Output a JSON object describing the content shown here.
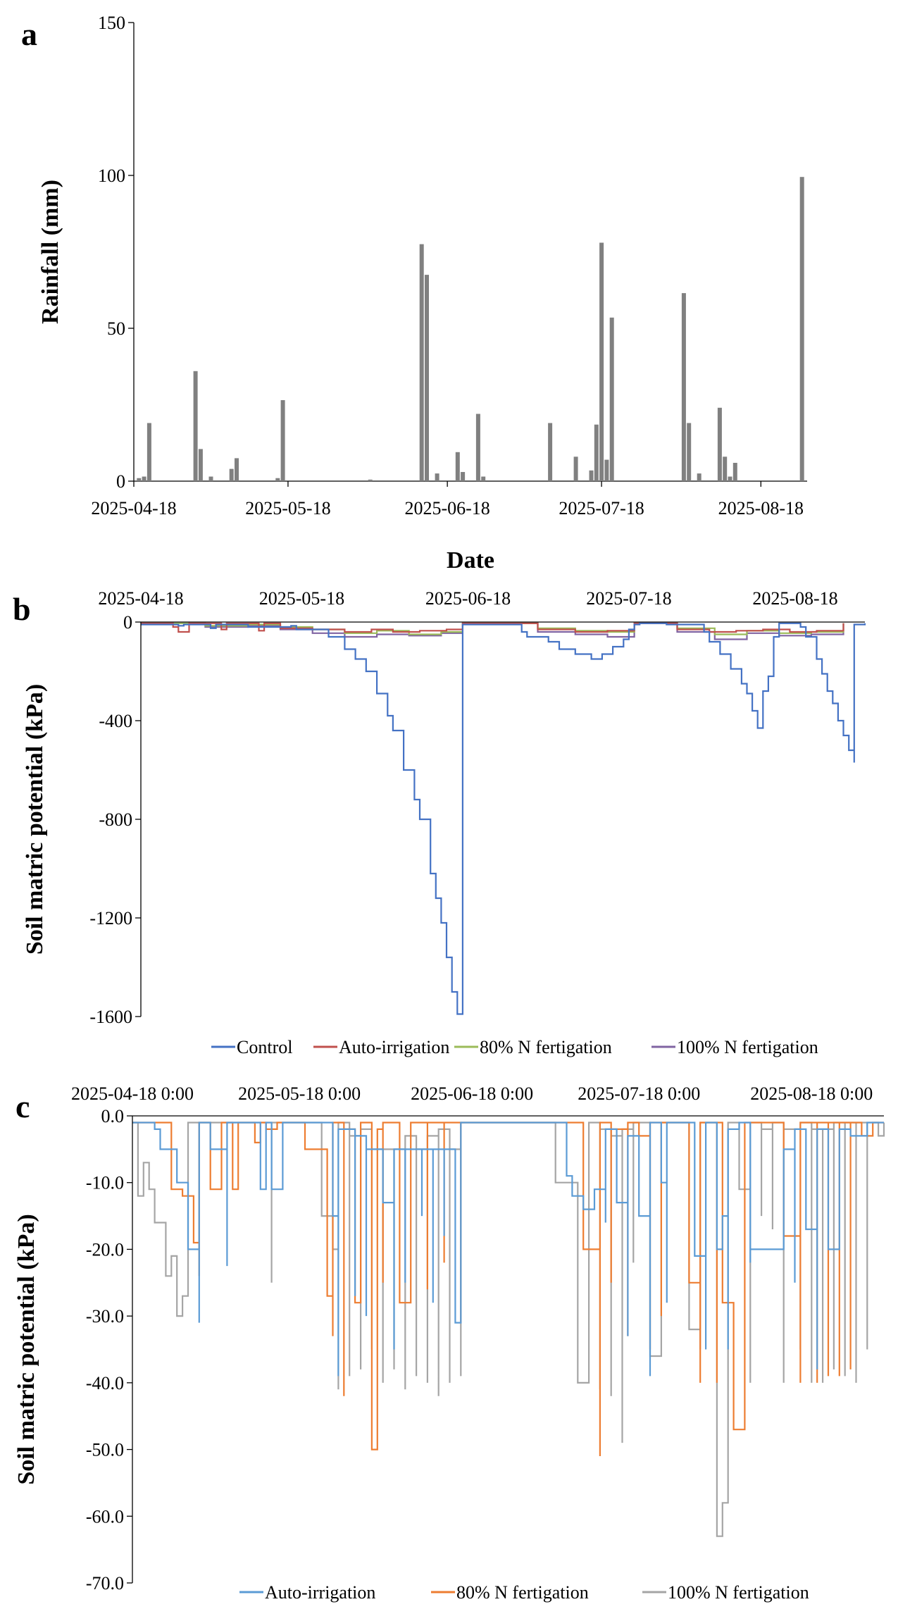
{
  "chart_data": [
    {
      "panel": "a",
      "type": "bar",
      "xlabel": "Date",
      "ylabel": "Rainfall (mm)",
      "ylim": [
        0,
        150
      ],
      "yticks": [
        "0",
        "50",
        "100",
        "150"
      ],
      "xticks": [
        "2025-04-18",
        "2025-05-18",
        "2025-06-18",
        "2025-07-18",
        "2025-08-18"
      ],
      "x_range": [
        "2025-04-18",
        "2025-08-27"
      ],
      "color": "#808080",
      "dates": [
        "2025-04-19",
        "2025-04-20",
        "2025-04-21",
        "2025-04-30",
        "2025-05-01",
        "2025-05-03",
        "2025-05-07",
        "2025-05-08",
        "2025-05-16",
        "2025-05-17",
        "2025-06-03",
        "2025-06-13",
        "2025-06-14",
        "2025-06-16",
        "2025-06-20",
        "2025-06-21",
        "2025-06-24",
        "2025-06-25",
        "2025-07-08",
        "2025-07-13",
        "2025-07-16",
        "2025-07-17",
        "2025-07-18",
        "2025-07-19",
        "2025-07-20",
        "2025-08-03",
        "2025-08-04",
        "2025-08-06",
        "2025-08-10",
        "2025-08-11",
        "2025-08-12",
        "2025-08-13",
        "2025-08-26"
      ],
      "values": [
        1,
        1.5,
        19,
        36,
        10.5,
        1.5,
        4,
        7.5,
        1,
        26.5,
        0.5,
        77.5,
        67.5,
        2.5,
        9.5,
        3,
        22,
        1.5,
        19,
        8,
        3.5,
        18.5,
        78,
        7,
        53.5,
        61.5,
        19,
        2.5,
        24,
        8,
        1.5,
        6,
        99.5
      ]
    },
    {
      "panel": "b",
      "type": "line",
      "xlabel": "",
      "ylabel": "Soil matric potential (kPa)",
      "ylim": [
        -1600,
        0
      ],
      "yticks": [
        "0",
        "-400",
        "-800",
        "-1200",
        "-1600"
      ],
      "xticks": [
        "2025-04-18",
        "2025-05-18",
        "2025-06-18",
        "2025-07-18",
        "2025-08-18"
      ],
      "x_range": [
        "2025-04-18",
        "2025-08-31"
      ],
      "series": [
        {
          "name": "Control",
          "color": "#4472C4",
          "dates": [
            "2025-04-18",
            "2025-04-25",
            "2025-04-26",
            "2025-05-01",
            "2025-05-02",
            "2025-05-08",
            "2025-05-16",
            "2025-05-17",
            "2025-05-23",
            "2025-05-26",
            "2025-05-28",
            "2025-05-30",
            "2025-06-01",
            "2025-06-03",
            "2025-06-04",
            "2025-06-06",
            "2025-06-08",
            "2025-06-09",
            "2025-06-11",
            "2025-06-12",
            "2025-06-13",
            "2025-06-14",
            "2025-06-15",
            "2025-06-16",
            "2025-06-17",
            "2025-06-17",
            "2025-06-28",
            "2025-06-29",
            "2025-07-03",
            "2025-07-05",
            "2025-07-08",
            "2025-07-11",
            "2025-07-13",
            "2025-07-15",
            "2025-07-17",
            "2025-07-18",
            "2025-07-19",
            "2025-07-20",
            "2025-07-21",
            "2025-07-25",
            "2025-08-01",
            "2025-08-02",
            "2025-08-04",
            "2025-08-06",
            "2025-08-08",
            "2025-08-09",
            "2025-08-10",
            "2025-08-11",
            "2025-08-12",
            "2025-08-13",
            "2025-08-14",
            "2025-08-15",
            "2025-08-15",
            "2025-08-19",
            "2025-08-20",
            "2025-08-22",
            "2025-08-23",
            "2025-08-24",
            "2025-08-25",
            "2025-08-26",
            "2025-08-27",
            "2025-08-28",
            "2025-08-29",
            "2025-08-29",
            "2025-08-31"
          ],
          "values": [
            -10,
            -15,
            -10,
            -25,
            -10,
            -20,
            -15,
            -30,
            -60,
            -110,
            -150,
            -200,
            -290,
            -380,
            -440,
            -600,
            -720,
            -800,
            -1020,
            -1120,
            -1220,
            -1360,
            -1500,
            -1590,
            -80,
            -10,
            -40,
            -60,
            -80,
            -110,
            -130,
            -150,
            -130,
            -100,
            -70,
            -30,
            -10,
            -5,
            -5,
            -10,
            -40,
            -80,
            -130,
            -190,
            -250,
            -290,
            -360,
            -430,
            -280,
            -220,
            -60,
            -10,
            -5,
            -20,
            -60,
            -150,
            -210,
            -280,
            -330,
            -400,
            -460,
            -520,
            -570,
            -10,
            -5
          ]
        },
        {
          "name": "Auto-irrigation",
          "color": "#C0504D",
          "dates": [
            "2025-04-18",
            "2025-04-24",
            "2025-04-25",
            "2025-04-27",
            "2025-05-03",
            "2025-05-04",
            "2025-05-10",
            "2025-05-11",
            "2025-05-14",
            "2025-05-20",
            "2025-05-26",
            "2025-05-31",
            "2025-06-04",
            "2025-06-09",
            "2025-06-14",
            "2025-06-17",
            "2025-07-01",
            "2025-07-08",
            "2025-07-14",
            "2025-07-19",
            "2025-07-27",
            "2025-08-02",
            "2025-08-07",
            "2025-08-12",
            "2025-08-17",
            "2025-08-22",
            "2025-08-27"
          ],
          "values": [
            -5,
            -20,
            -40,
            -5,
            -30,
            -5,
            -35,
            -5,
            -25,
            -30,
            -40,
            -30,
            -40,
            -35,
            -30,
            -5,
            -30,
            -40,
            -35,
            -5,
            -30,
            -40,
            -35,
            -30,
            -40,
            -35,
            -5
          ]
        },
        {
          "name": "80% N fertigation",
          "color": "#9BBB59",
          "dates": [
            "2025-04-18",
            "2025-04-30",
            "2025-05-08",
            "2025-05-14",
            "2025-05-20",
            "2025-05-26",
            "2025-06-01",
            "2025-06-07",
            "2025-06-13",
            "2025-06-17",
            "2025-07-01",
            "2025-07-08",
            "2025-07-14",
            "2025-07-19",
            "2025-07-27",
            "2025-08-03",
            "2025-08-09",
            "2025-08-15",
            "2025-08-21",
            "2025-08-27"
          ],
          "values": [
            -5,
            -15,
            -10,
            -20,
            -30,
            -45,
            -35,
            -50,
            -40,
            -5,
            -25,
            -35,
            -40,
            -5,
            -25,
            -50,
            -35,
            -45,
            -40,
            -5
          ]
        },
        {
          "name": "100% N fertigation",
          "color": "#8064A2",
          "dates": [
            "2025-04-18",
            "2025-04-30",
            "2025-05-08",
            "2025-05-14",
            "2025-05-20",
            "2025-05-26",
            "2025-06-01",
            "2025-06-07",
            "2025-06-13",
            "2025-06-17",
            "2025-07-01",
            "2025-07-08",
            "2025-07-14",
            "2025-07-19",
            "2025-07-27",
            "2025-08-03",
            "2025-08-09",
            "2025-08-15",
            "2025-08-21",
            "2025-08-27"
          ],
          "values": [
            -5,
            -20,
            -15,
            -30,
            -45,
            -60,
            -50,
            -55,
            -45,
            -5,
            -40,
            -50,
            -60,
            -5,
            -40,
            -70,
            -45,
            -55,
            -50,
            -5
          ]
        }
      ]
    },
    {
      "panel": "c",
      "type": "line",
      "xlabel": "",
      "ylabel": "Soil matric potential (kPa)",
      "ylim": [
        -70,
        0
      ],
      "yticks": [
        "0.0",
        "-10.0",
        "-20.0",
        "-30.0",
        "-40.0",
        "-50.0",
        "-60.0",
        "-70.0"
      ],
      "xticks": [
        "2025-04-18 0:00",
        "2025-05-18 0:00",
        "2025-06-18 0:00",
        "2025-07-18 0:00",
        "2025-08-18 0:00"
      ],
      "x_range": [
        "2025-04-18",
        "2025-08-31"
      ],
      "series": [
        {
          "name": "Auto-irrigation",
          "color": "#5B9BD5",
          "dates": [
            "2025-04-18",
            "2025-04-22",
            "2025-04-23",
            "2025-04-26",
            "2025-04-28",
            "2025-04-30",
            "2025-04-30",
            "2025-05-02",
            "2025-05-05",
            "2025-05-05",
            "2025-05-11",
            "2025-05-12",
            "2025-05-12",
            "2025-05-13",
            "2025-05-15",
            "2025-05-23",
            "2025-05-24",
            "2025-05-25",
            "2025-05-25",
            "2025-05-28",
            "2025-05-28",
            "2025-05-30",
            "2025-05-30",
            "2025-06-02",
            "2025-06-04",
            "2025-06-04",
            "2025-06-06",
            "2025-06-06",
            "2025-06-09",
            "2025-06-09",
            "2025-06-11",
            "2025-06-11",
            "2025-06-13",
            "2025-06-13",
            "2025-06-15",
            "2025-06-16",
            "2025-06-16",
            "2025-06-18",
            "2025-07-05",
            "2025-07-06",
            "2025-07-08",
            "2025-07-10",
            "2025-07-12",
            "2025-07-12",
            "2025-07-14",
            "2025-07-16",
            "2025-07-16",
            "2025-07-18",
            "2025-07-20",
            "2025-07-20",
            "2025-07-22",
            "2025-07-23",
            "2025-07-23",
            "2025-07-28",
            "2025-07-30",
            "2025-07-30",
            "2025-08-01",
            "2025-08-02",
            "2025-08-03",
            "2025-08-03",
            "2025-08-05",
            "2025-08-07",
            "2025-08-07",
            "2025-08-13",
            "2025-08-15",
            "2025-08-15",
            "2025-08-17",
            "2025-08-19",
            "2025-08-19",
            "2025-08-21",
            "2025-08-23",
            "2025-08-23",
            "2025-08-25",
            "2025-08-27",
            "2025-08-28",
            "2025-08-29",
            "2025-08-31"
          ],
          "values": [
            -1,
            -2,
            -5,
            -10,
            -20,
            -31,
            -1,
            -5,
            -22.5,
            -1,
            -11,
            -1,
            -1,
            -11,
            -1,
            -1,
            -15,
            -39,
            -2,
            -27,
            -3,
            -30,
            -5,
            -13,
            -35,
            -5,
            -25,
            -5,
            -15,
            -5,
            -28,
            -5,
            -18,
            -5,
            -31,
            -2,
            -1,
            -1,
            -9,
            -12,
            -14,
            -11,
            -16,
            -2,
            -13,
            -33,
            -3,
            -15,
            -39,
            -1,
            -10,
            -28,
            -1,
            -21,
            -35,
            -1,
            -20,
            -15,
            -35,
            -2,
            -1,
            -22,
            -20,
            -5,
            -25,
            -2,
            -17,
            -38,
            -2,
            -20,
            -5,
            -2,
            -3,
            -3,
            -1,
            -1,
            -1
          ]
        },
        {
          "name": "80% N fertigation",
          "color": "#ED7D31",
          "dates": [
            "2025-04-18",
            "2025-04-25",
            "2025-04-27",
            "2025-04-29",
            "2025-04-30",
            "2025-04-30",
            "2025-05-02",
            "2025-05-04",
            "2025-05-06",
            "2025-05-07",
            "2025-05-10",
            "2025-05-11",
            "2025-05-12",
            "2025-05-14",
            "2025-05-17",
            "2025-05-19",
            "2025-05-23",
            "2025-05-24",
            "2025-05-24",
            "2025-05-26",
            "2025-05-26",
            "2025-05-28",
            "2025-05-29",
            "2025-05-29",
            "2025-05-31",
            "2025-06-01",
            "2025-06-02",
            "2025-06-02",
            "2025-06-05",
            "2025-06-07",
            "2025-06-07",
            "2025-06-10",
            "2025-06-10",
            "2025-06-13",
            "2025-06-13",
            "2025-06-16",
            "2025-06-16",
            "2025-06-18",
            "2025-07-08",
            "2025-07-11",
            "2025-07-11",
            "2025-07-13",
            "2025-07-13",
            "2025-07-16",
            "2025-07-16",
            "2025-07-18",
            "2025-07-20",
            "2025-07-20",
            "2025-07-22",
            "2025-07-22",
            "2025-07-27",
            "2025-07-29",
            "2025-07-29",
            "2025-08-01",
            "2025-08-01",
            "2025-08-02",
            "2025-08-04",
            "2025-08-06",
            "2025-08-06",
            "2025-08-13",
            "2025-08-16",
            "2025-08-16",
            "2025-08-19",
            "2025-08-19",
            "2025-08-21",
            "2025-08-21",
            "2025-08-23",
            "2025-08-23",
            "2025-08-25",
            "2025-08-25",
            "2025-08-27",
            "2025-08-29",
            "2025-08-31"
          ],
          "values": [
            -1,
            -11,
            -12,
            -19,
            -24,
            -1,
            -11,
            -1,
            -11,
            -1,
            -4,
            -1,
            -2,
            -1,
            -1,
            -5,
            -27,
            -33,
            -1,
            -42,
            -2,
            -28,
            -25,
            -1,
            -50,
            -2,
            -25,
            -1,
            -28,
            -20,
            -1,
            -26,
            -1,
            -22,
            -1,
            -31,
            -1,
            -1,
            -20,
            -51,
            -1,
            -25,
            -2,
            -33,
            -1,
            -3,
            -35,
            -1,
            -30,
            -1,
            -25,
            -40,
            -1,
            -40,
            -1,
            -28,
            -47,
            -26,
            -1,
            -18,
            -40,
            -1,
            -40,
            -1,
            -39,
            -1,
            -39,
            -1,
            -38,
            -1,
            -3,
            -1,
            -1
          ]
        },
        {
          "name": "100% N fertigation",
          "color": "#A5A5A5",
          "dates": [
            "2025-04-18",
            "2025-04-19",
            "2025-04-20",
            "2025-04-21",
            "2025-04-22",
            "2025-04-24",
            "2025-04-25",
            "2025-04-26",
            "2025-04-27",
            "2025-04-28",
            "2025-04-28",
            "2025-04-30",
            "2025-04-30",
            "2025-05-12",
            "2025-05-13",
            "2025-05-13",
            "2025-05-15",
            "2025-05-22",
            "2025-05-24",
            "2025-05-25",
            "2025-05-25",
            "2025-05-27",
            "2025-05-27",
            "2025-05-29",
            "2025-05-29",
            "2025-05-31",
            "2025-05-31",
            "2025-06-02",
            "2025-06-02",
            "2025-06-04",
            "2025-06-04",
            "2025-06-06",
            "2025-06-06",
            "2025-06-08",
            "2025-06-08",
            "2025-06-10",
            "2025-06-10",
            "2025-06-12",
            "2025-06-12",
            "2025-06-14",
            "2025-06-14",
            "2025-06-16",
            "2025-06-16",
            "2025-06-18",
            "2025-07-03",
            "2025-07-07",
            "2025-07-09",
            "2025-07-09",
            "2025-07-11",
            "2025-07-11",
            "2025-07-13",
            "2025-07-13",
            "2025-07-15",
            "2025-07-15",
            "2025-07-17",
            "2025-07-17",
            "2025-07-20",
            "2025-07-22",
            "2025-07-22",
            "2025-07-27",
            "2025-07-29",
            "2025-07-29",
            "2025-08-01",
            "2025-08-02",
            "2025-08-03",
            "2025-08-03",
            "2025-08-05",
            "2025-08-07",
            "2025-08-07",
            "2025-08-09",
            "2025-08-09",
            "2025-08-11",
            "2025-08-11",
            "2025-08-13",
            "2025-08-13",
            "2025-08-16",
            "2025-08-16",
            "2025-08-18",
            "2025-08-18",
            "2025-08-20",
            "2025-08-20",
            "2025-08-22",
            "2025-08-22",
            "2025-08-24",
            "2025-08-24",
            "2025-08-26",
            "2025-08-26",
            "2025-08-28",
            "2025-08-28",
            "2025-08-30",
            "2025-08-31"
          ],
          "values": [
            -1,
            -12,
            -7,
            -11,
            -16,
            -24,
            -21,
            -30,
            -27,
            -6,
            -1,
            -20,
            -1,
            -1,
            -25,
            -1,
            -1,
            -15,
            -20,
            -41,
            -1,
            -39,
            -3,
            -38,
            -2,
            -35,
            -5,
            -40,
            -5,
            -38,
            -5,
            -41,
            -3,
            -39,
            -5,
            -40,
            -3,
            -42,
            -2,
            -40,
            -5,
            -39,
            -1,
            -1,
            -10,
            -40,
            -38,
            -1,
            -41,
            -2,
            -42,
            -3,
            -49,
            -2,
            -22,
            -1,
            -36,
            -26,
            -1,
            -32,
            -35,
            -1,
            -63,
            -58,
            -26,
            -1,
            -11,
            -40,
            -1,
            -15,
            -2,
            -17,
            -1,
            -40,
            -2,
            -35,
            -1,
            -40,
            -2,
            -40,
            -2,
            -38,
            -1,
            -39,
            -1,
            -40,
            -1,
            -35,
            -1,
            -3,
            -1
          ]
        }
      ]
    }
  ]
}
